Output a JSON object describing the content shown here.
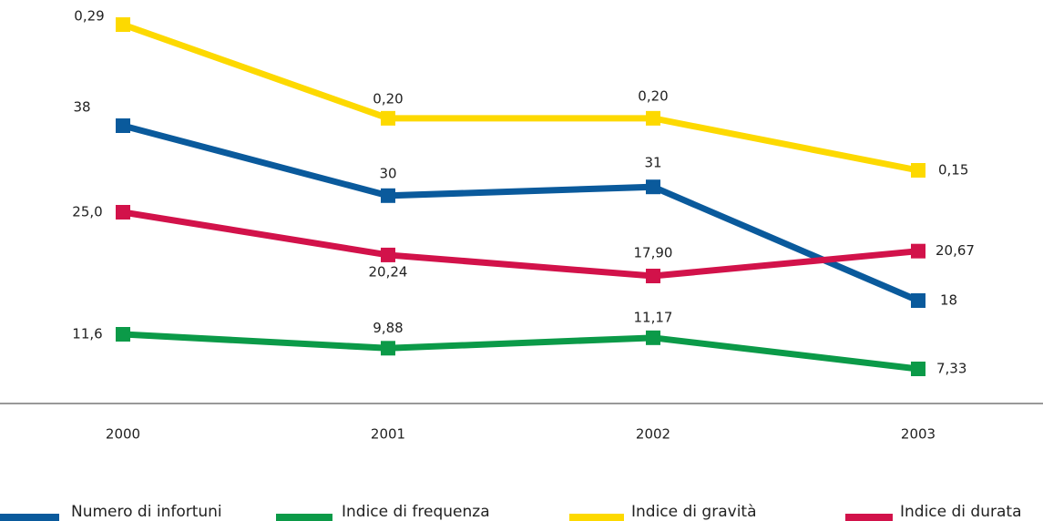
{
  "chart_data": {
    "type": "line",
    "categories": [
      "2000",
      "2001",
      "2002",
      "2003"
    ],
    "series": [
      {
        "name": "Numero di infortuni",
        "color": "#0a5a9c",
        "values": [
          38,
          30,
          31,
          18
        ],
        "value_labels": [
          "38",
          "30",
          "31",
          "18"
        ]
      },
      {
        "name": "Indice di frequenza",
        "color": "#0b9a48",
        "values": [
          11.6,
          9.88,
          11.17,
          7.33
        ],
        "value_labels": [
          "11,6",
          "9,88",
          "11,17",
          "7,33"
        ]
      },
      {
        "name": "Indice di gravità",
        "color": "#fdd900",
        "values": [
          0.29,
          0.2,
          0.2,
          0.15
        ],
        "value_labels": [
          "0,29",
          "0,20",
          "0,20",
          "0,15"
        ]
      },
      {
        "name": "Indice di durata",
        "color": "#d2124a",
        "values": [
          25.0,
          20.24,
          17.9,
          20.67
        ],
        "value_labels": [
          "25,0",
          "20,24",
          "17,90",
          "20,67"
        ]
      }
    ]
  }
}
